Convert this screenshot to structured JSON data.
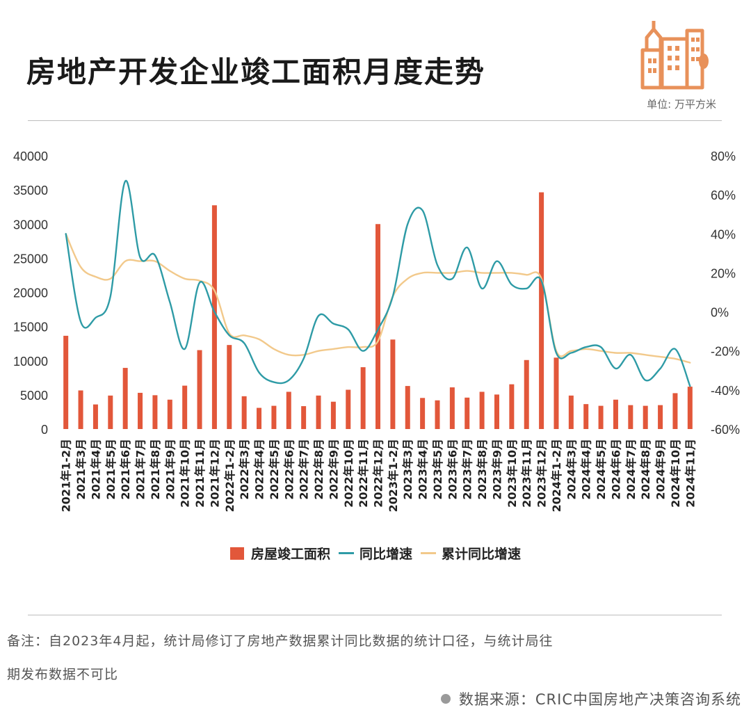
{
  "header": {
    "title": "房地产开发企业竣工面积月度走势",
    "unit": "单位: 万平方米"
  },
  "colors": {
    "bar": "#e2573a",
    "yoy_line": "#2e9ba6",
    "cumulative_line": "#f2c98b",
    "logo": "#e8915a"
  },
  "chart_data": {
    "type": "bar",
    "categories": [
      "2021年1-2月",
      "2021年3月",
      "2021年4月",
      "2021年5月",
      "2021年6月",
      "2021年7月",
      "2021年8月",
      "2021年9月",
      "2021年10月",
      "2021年11月",
      "2021年12月",
      "2022年1-2月",
      "2022年3月",
      "2022年4月",
      "2022年5月",
      "2022年6月",
      "2022年7月",
      "2022年8月",
      "2022年9月",
      "2022年10月",
      "2022年11月",
      "2022年12月",
      "2023年1-2月",
      "2023年3月",
      "2023年4月",
      "2023年5月",
      "2023年6月",
      "2023年7月",
      "2023年8月",
      "2023年9月",
      "2023年10月",
      "2023年11月",
      "2023年12月",
      "2024年1-2月",
      "2024年3月",
      "2024年4月",
      "2024年5月",
      "2024年6月",
      "2024年7月",
      "2024年8月",
      "2024年9月",
      "2024年10月",
      "2024年11月"
    ],
    "series": [
      {
        "name": "房屋竣工面积",
        "axis": "left",
        "type": "bar",
        "values": [
          13650,
          5650,
          3600,
          4900,
          8950,
          5300,
          4950,
          4300,
          6350,
          11550,
          32750,
          12300,
          4800,
          3100,
          3400,
          5450,
          3350,
          4900,
          4000,
          5750,
          9050,
          30000,
          13100,
          6300,
          4550,
          4200,
          6100,
          4600,
          5450,
          5050,
          6550,
          10100,
          34650,
          10450,
          4900,
          3650,
          3400,
          4300,
          3500,
          3400,
          3500,
          5250,
          6200
        ]
      },
      {
        "name": "同比增速",
        "axis": "right",
        "type": "line",
        "values": [
          40,
          -5,
          -3,
          8,
          67,
          28,
          29,
          5,
          -19,
          15,
          0,
          -12,
          -16,
          -31,
          -36,
          -35,
          -24,
          -2,
          -6,
          -9,
          -20,
          -9,
          8,
          45,
          52,
          24,
          17,
          33,
          12,
          26,
          14,
          12,
          16,
          -21,
          -21,
          -18,
          -18,
          -29,
          -22,
          -35,
          -29,
          -19,
          -38
        ]
      },
      {
        "name": "累计同比增速",
        "axis": "right",
        "type": "line",
        "values": [
          40,
          23,
          18,
          17,
          26,
          26,
          26,
          21,
          17,
          16,
          11,
          -11,
          -12,
          -14,
          -19,
          -22,
          -22,
          -20,
          -19,
          -18,
          -18,
          -15,
          8,
          17,
          20,
          20,
          20,
          21,
          20,
          20,
          20,
          19,
          17,
          -20,
          -20,
          -19,
          -20,
          -21,
          -21,
          -22,
          -23,
          -24,
          -26
        ]
      }
    ],
    "y_left": {
      "min": 0,
      "max": 40000,
      "ticks": [
        "0",
        "5000",
        "10000",
        "15000",
        "20000",
        "25000",
        "30000",
        "35000",
        "40000"
      ]
    },
    "y_right": {
      "min": -60,
      "max": 80,
      "ticks": [
        "-60%",
        "-40%",
        "-20%",
        "0%",
        "20%",
        "40%",
        "60%",
        "80%"
      ]
    },
    "legend": [
      "房屋竣工面积",
      "同比增速",
      "累计同比增速"
    ],
    "legend_position": "bottom",
    "grid": false
  },
  "footer": {
    "note_line1": "备注：自2023年4月起，统计局修订了房地产数据累计同比数据的统计口径，与统计局往",
    "note_line2": "期发布数据不可比",
    "source": "数据来源：CRIC中国房地产决策咨询系统"
  }
}
